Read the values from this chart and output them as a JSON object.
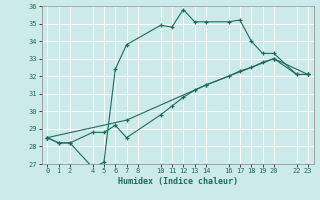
{
  "title": "",
  "xlabel": "Humidex (Indice chaleur)",
  "bg_color": "#cceaea",
  "grid_color": "#ffffff",
  "line_color": "#1e6b5e",
  "ylim": [
    27,
    36
  ],
  "xlim": [
    -0.5,
    23.5
  ],
  "yticks": [
    27,
    28,
    29,
    30,
    31,
    32,
    33,
    34,
    35,
    36
  ],
  "xticks": [
    0,
    1,
    2,
    4,
    5,
    6,
    7,
    8,
    10,
    11,
    12,
    13,
    14,
    16,
    17,
    18,
    19,
    20,
    22,
    23
  ],
  "line1_x": [
    0,
    1,
    2,
    4,
    5,
    6,
    7,
    10,
    11,
    12,
    13,
    14,
    16,
    17,
    18,
    19,
    20,
    22,
    23
  ],
  "line1_y": [
    28.5,
    28.2,
    28.2,
    26.8,
    27.1,
    32.4,
    33.8,
    34.9,
    34.8,
    35.8,
    35.1,
    35.1,
    35.1,
    35.2,
    34.0,
    33.3,
    33.3,
    32.1,
    32.1
  ],
  "line2_x": [
    0,
    1,
    2,
    4,
    5,
    6,
    7,
    10,
    11,
    12,
    13,
    14,
    16,
    17,
    18,
    19,
    20,
    22,
    23
  ],
  "line2_y": [
    28.5,
    28.2,
    28.2,
    28.8,
    28.8,
    29.2,
    28.5,
    29.8,
    30.3,
    30.8,
    31.2,
    31.5,
    32.0,
    32.3,
    32.5,
    32.8,
    33.0,
    32.1,
    32.1
  ],
  "line3_x": [
    0,
    7,
    14,
    20,
    23
  ],
  "line3_y": [
    28.5,
    29.5,
    31.5,
    33.0,
    32.1
  ]
}
